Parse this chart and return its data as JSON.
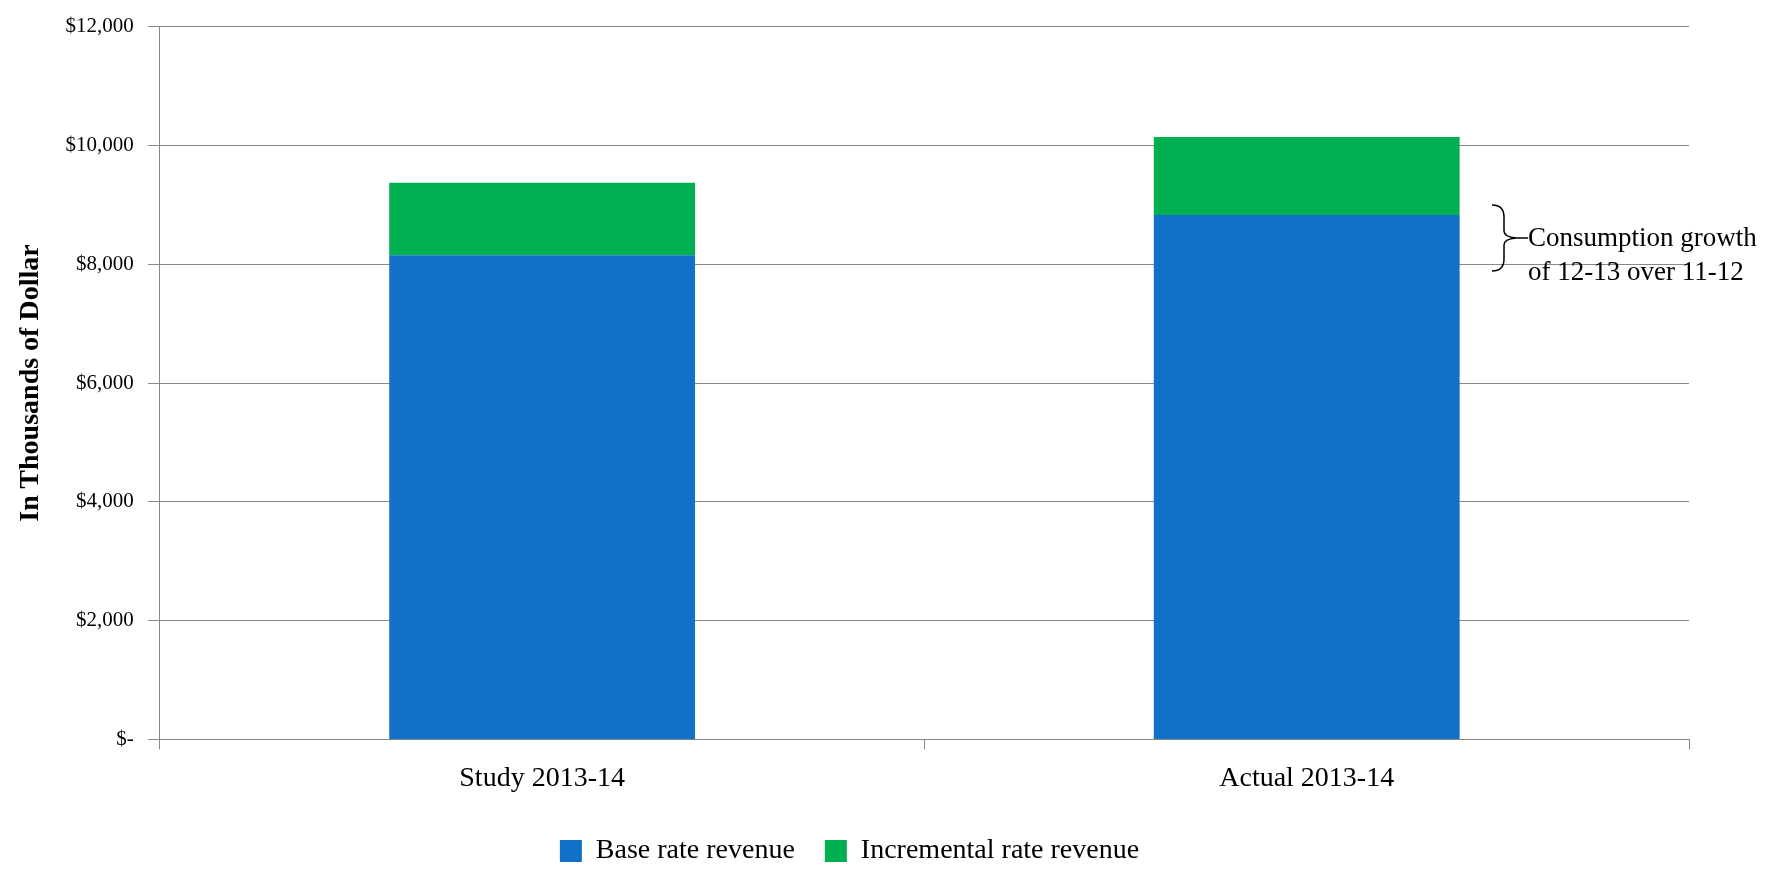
{
  "chart_data": {
    "type": "bar",
    "stacked": true,
    "ylabel": "In Thousands of Dollar",
    "categories": [
      "Study 2013-14",
      "Actual 2013-14"
    ],
    "series": [
      {
        "name": "Base rate revenue",
        "color": "#1170c8",
        "values": [
          8150,
          8830
        ]
      },
      {
        "name": "Incremental rate revenue",
        "color": "#00b050",
        "values": [
          1220,
          1310
        ]
      }
    ],
    "ylim": [
      0,
      12000
    ],
    "yticks": [
      {
        "value": 0,
        "label": "$-"
      },
      {
        "value": 2000,
        "label": "$2,000"
      },
      {
        "value": 4000,
        "label": "$4,000"
      },
      {
        "value": 6000,
        "label": "$6,000"
      },
      {
        "value": 8000,
        "label": "$8,000"
      },
      {
        "value": 10000,
        "label": "$10,000"
      },
      {
        "value": 12000,
        "label": "$12,000"
      }
    ],
    "grid": "y",
    "legend": "bottom",
    "annotations": [
      "Consumption growth  of 12-13 over 11-12"
    ]
  }
}
